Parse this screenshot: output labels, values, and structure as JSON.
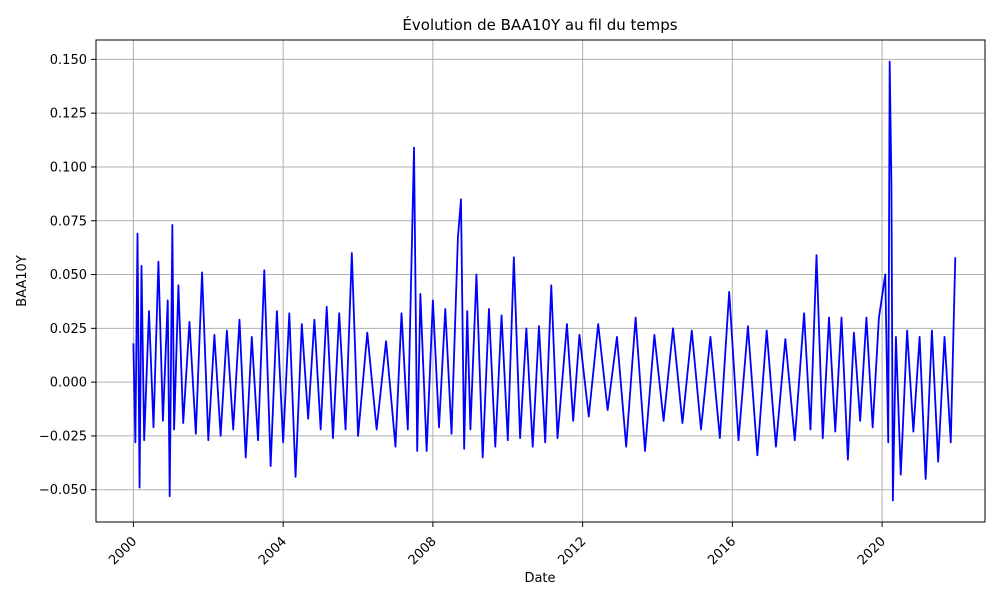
{
  "chart_data": {
    "type": "line",
    "title": "Évolution de BAA10Y au fil du temps",
    "xlabel": "Date",
    "ylabel": "BAA10Y",
    "xlim": [
      "1999-01-01",
      "2022-10-01"
    ],
    "ylim": [
      -0.065,
      0.159
    ],
    "x_ticks": [
      {
        "date": "2000-01-01",
        "label": "2000"
      },
      {
        "date": "2004-01-01",
        "label": "2004"
      },
      {
        "date": "2008-01-01",
        "label": "2008"
      },
      {
        "date": "2012-01-01",
        "label": "2012"
      },
      {
        "date": "2016-01-01",
        "label": "2016"
      },
      {
        "date": "2020-01-01",
        "label": "2020"
      }
    ],
    "y_ticks": [
      {
        "value": -0.05,
        "label": "−0.050"
      },
      {
        "value": -0.025,
        "label": "−0.025"
      },
      {
        "value": 0.0,
        "label": "0.000"
      },
      {
        "value": 0.025,
        "label": "0.025"
      },
      {
        "value": 0.05,
        "label": "0.050"
      },
      {
        "value": 0.075,
        "label": "0.075"
      },
      {
        "value": 0.1,
        "label": "0.100"
      },
      {
        "value": 0.125,
        "label": "0.125"
      },
      {
        "value": 0.15,
        "label": "0.150"
      }
    ],
    "grid": true,
    "line_color": "#0000ff",
    "series": [
      {
        "x": [
          "2000-01-01",
          "2000-01-20",
          "2000-02-10",
          "2000-03-01",
          "2000-03-20",
          "2000-04-15",
          "2000-06-01",
          "2000-07-15",
          "2000-09-01",
          "2000-10-15",
          "2000-12-01",
          "2000-12-20",
          "2001-01-15",
          "2001-02-01",
          "2001-03-15",
          "2001-05-01",
          "2001-07-01",
          "2001-09-01",
          "2001-11-01",
          "2002-01-01",
          "2002-03-01",
          "2002-05-01",
          "2002-07-01",
          "2002-09-01",
          "2002-11-01",
          "2003-01-01",
          "2003-03-01",
          "2003-05-01",
          "2003-07-01",
          "2003-09-01",
          "2003-11-01",
          "2004-01-01",
          "2004-03-01",
          "2004-05-01",
          "2004-07-01",
          "2004-09-01",
          "2004-11-01",
          "2005-01-01",
          "2005-03-01",
          "2005-05-01",
          "2005-07-01",
          "2005-09-01",
          "2005-11-01",
          "2006-01-01",
          "2006-04-01",
          "2006-07-01",
          "2006-10-01",
          "2007-01-01",
          "2007-03-01",
          "2007-05-01",
          "2007-07-01",
          "2007-08-01",
          "2007-09-01",
          "2007-11-01",
          "2008-01-01",
          "2008-03-01",
          "2008-05-01",
          "2008-07-01",
          "2008-09-01",
          "2008-10-01",
          "2008-11-01",
          "2008-12-01",
          "2009-01-01",
          "2009-03-01",
          "2009-05-01",
          "2009-07-01",
          "2009-09-01",
          "2009-11-01",
          "2010-01-01",
          "2010-03-01",
          "2010-05-01",
          "2010-07-01",
          "2010-09-01",
          "2010-11-01",
          "2011-01-01",
          "2011-03-01",
          "2011-05-01",
          "2011-08-01",
          "2011-10-01",
          "2011-12-01",
          "2012-03-01",
          "2012-06-01",
          "2012-09-01",
          "2012-12-01",
          "2013-03-01",
          "2013-06-01",
          "2013-09-01",
          "2013-12-01",
          "2014-03-01",
          "2014-06-01",
          "2014-09-01",
          "2014-12-01",
          "2015-03-01",
          "2015-06-01",
          "2015-09-01",
          "2015-12-01",
          "2016-03-01",
          "2016-06-01",
          "2016-09-01",
          "2016-12-01",
          "2017-03-01",
          "2017-06-01",
          "2017-09-01",
          "2017-12-01",
          "2018-02-01",
          "2018-04-01",
          "2018-06-01",
          "2018-08-01",
          "2018-10-01",
          "2018-12-01",
          "2019-02-01",
          "2019-04-01",
          "2019-06-01",
          "2019-08-01",
          "2019-10-01",
          "2019-12-01",
          "2020-02-01",
          "2020-03-01",
          "2020-03-15",
          "2020-04-01",
          "2020-04-15",
          "2020-05-15",
          "2020-07-01",
          "2020-09-01",
          "2020-11-01",
          "2021-01-01",
          "2021-03-01",
          "2021-05-01",
          "2021-07-01",
          "2021-09-01",
          "2021-11-01",
          "2021-12-15"
        ],
        "y": [
          0.018,
          -0.028,
          0.069,
          -0.049,
          0.054,
          -0.027,
          0.033,
          -0.021,
          0.056,
          -0.018,
          0.038,
          -0.053,
          0.073,
          -0.022,
          0.045,
          -0.019,
          0.028,
          -0.024,
          0.051,
          -0.027,
          0.022,
          -0.025,
          0.024,
          -0.022,
          0.029,
          -0.035,
          0.021,
          -0.027,
          0.052,
          -0.039,
          0.033,
          -0.028,
          0.032,
          -0.044,
          0.027,
          -0.017,
          0.029,
          -0.022,
          0.035,
          -0.026,
          0.032,
          -0.022,
          0.06,
          -0.025,
          0.023,
          -0.022,
          0.019,
          -0.03,
          0.032,
          -0.022,
          0.109,
          -0.032,
          0.041,
          -0.032,
          0.038,
          -0.021,
          0.034,
          -0.024,
          0.067,
          0.085,
          -0.031,
          0.033,
          -0.022,
          0.05,
          -0.035,
          0.034,
          -0.03,
          0.031,
          -0.027,
          0.058,
          -0.026,
          0.025,
          -0.03,
          0.026,
          -0.028,
          0.045,
          -0.026,
          0.027,
          -0.018,
          0.022,
          -0.016,
          0.027,
          -0.013,
          0.021,
          -0.03,
          0.03,
          -0.032,
          0.022,
          -0.018,
          0.025,
          -0.019,
          0.024,
          -0.022,
          0.021,
          -0.026,
          0.042,
          -0.027,
          0.026,
          -0.034,
          0.024,
          -0.03,
          0.02,
          -0.027,
          0.032,
          -0.022,
          0.059,
          -0.026,
          0.03,
          -0.023,
          0.03,
          -0.036,
          0.023,
          -0.018,
          0.03,
          -0.021,
          0.03,
          0.05,
          -0.028,
          0.149,
          0.092,
          -0.055,
          0.021,
          -0.043,
          0.024,
          -0.023,
          0.021,
          -0.045,
          0.024,
          -0.037,
          0.021,
          -0.028,
          0.058
        ]
      }
    ]
  }
}
